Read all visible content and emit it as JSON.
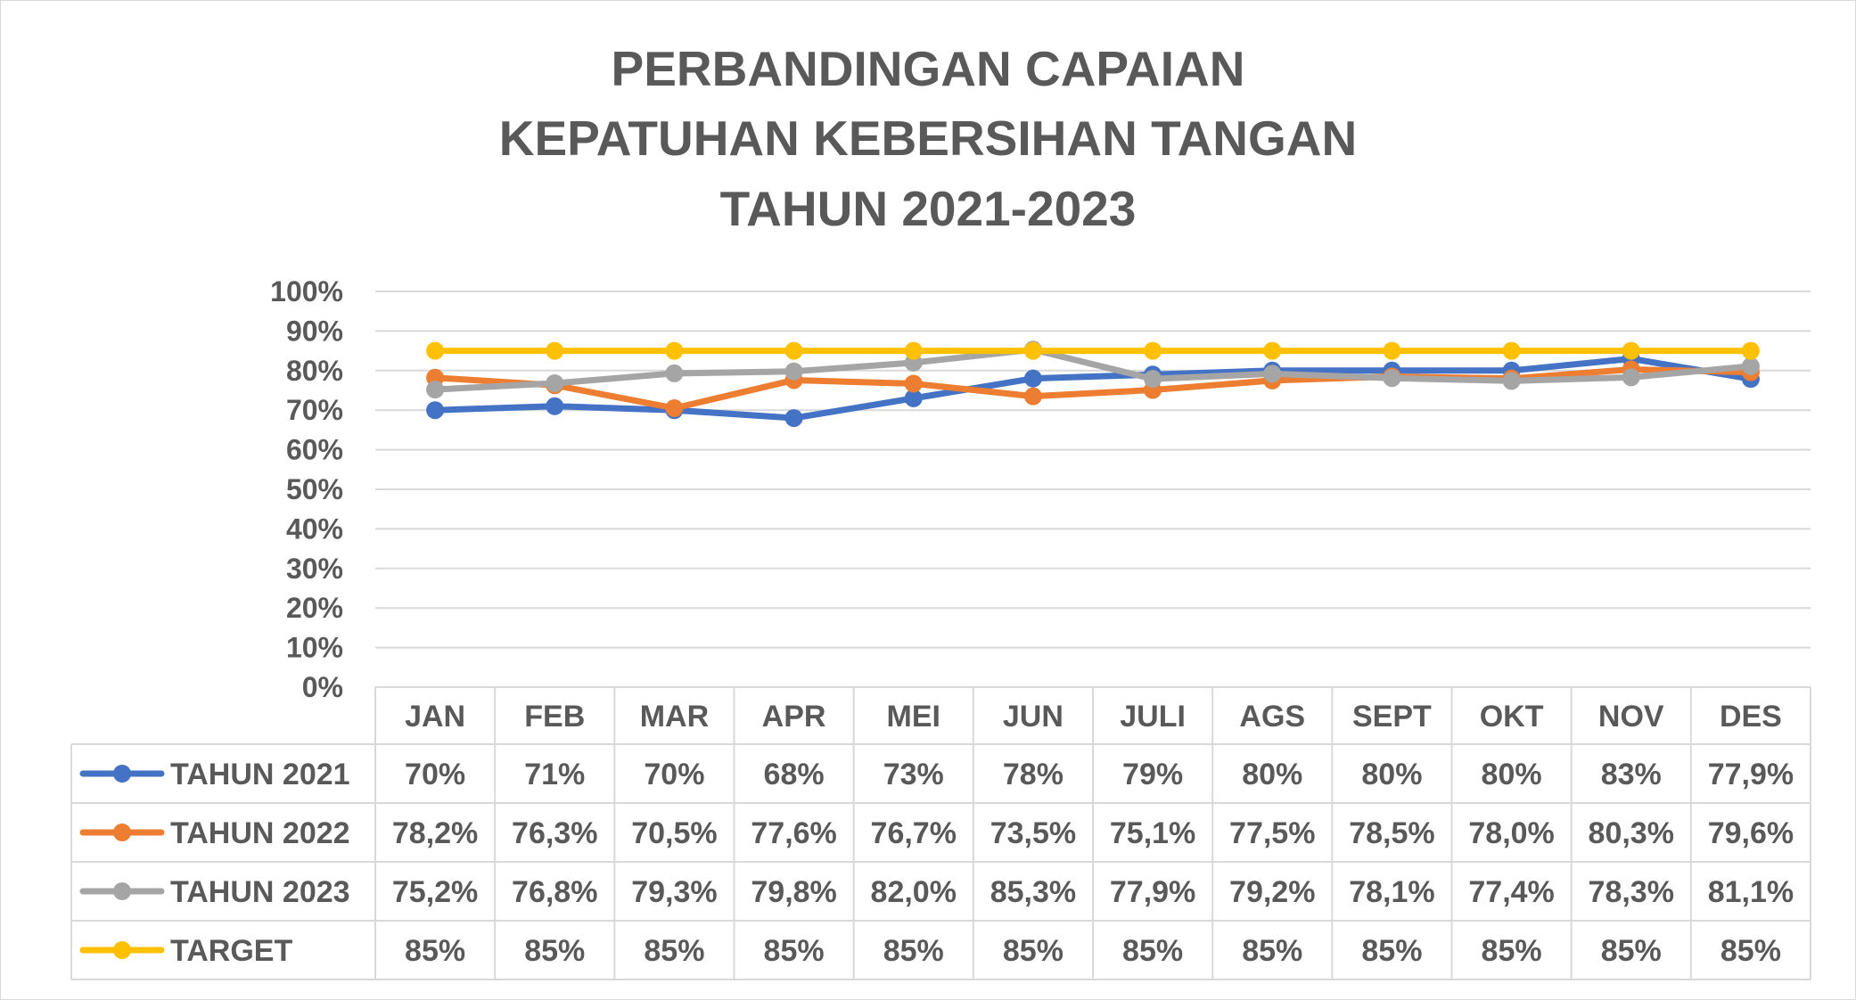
{
  "chart_data": {
    "type": "line",
    "title_lines": [
      "PERBANDINGAN CAPAIAN",
      "KEPATUHAN KEBERSIHAN TANGAN",
      "TAHUN 2021-2023"
    ],
    "categories": [
      "JAN",
      "FEB",
      "MAR",
      "APR",
      "MEI",
      "JUN",
      "JULI",
      "AGS",
      "SEPT",
      "OKT",
      "NOV",
      "DES"
    ],
    "y_ticks": [
      "0%",
      "10%",
      "20%",
      "30%",
      "40%",
      "50%",
      "60%",
      "70%",
      "80%",
      "90%",
      "100%"
    ],
    "ylim": [
      0,
      100
    ],
    "grid": true,
    "legend": "data-table",
    "series": [
      {
        "name": "TAHUN 2021",
        "color": "#4472C4",
        "values": [
          70,
          71,
          70,
          68,
          73,
          78,
          79,
          80,
          80,
          80,
          83,
          77.9
        ],
        "labels": [
          "70%",
          "71%",
          "70%",
          "68%",
          "73%",
          "78%",
          "79%",
          "80%",
          "80%",
          "80%",
          "83%",
          "77,9%"
        ]
      },
      {
        "name": "TAHUN 2022",
        "color": "#ED7D31",
        "values": [
          78.2,
          76.3,
          70.5,
          77.6,
          76.7,
          73.5,
          75.1,
          77.5,
          78.5,
          78.0,
          80.3,
          79.6
        ],
        "labels": [
          "78,2%",
          "76,3%",
          "70,5%",
          "77,6%",
          "76,7%",
          "73,5%",
          "75,1%",
          "77,5%",
          "78,5%",
          "78,0%",
          "80,3%",
          "79,6%"
        ]
      },
      {
        "name": "TAHUN 2023",
        "color": "#A5A5A5",
        "values": [
          75.2,
          76.8,
          79.3,
          79.8,
          82.0,
          85.3,
          77.9,
          79.2,
          78.1,
          77.4,
          78.3,
          81.1
        ],
        "labels": [
          "75,2%",
          "76,8%",
          "79,3%",
          "79,8%",
          "82,0%",
          "85,3%",
          "77,9%",
          "79,2%",
          "78,1%",
          "77,4%",
          "78,3%",
          "81,1%"
        ]
      },
      {
        "name": "TARGET",
        "color": "#FFC000",
        "values": [
          85,
          85,
          85,
          85,
          85,
          85,
          85,
          85,
          85,
          85,
          85,
          85
        ],
        "labels": [
          "85%",
          "85%",
          "85%",
          "85%",
          "85%",
          "85%",
          "85%",
          "85%",
          "85%",
          "85%",
          "85%",
          "85%"
        ]
      }
    ]
  }
}
